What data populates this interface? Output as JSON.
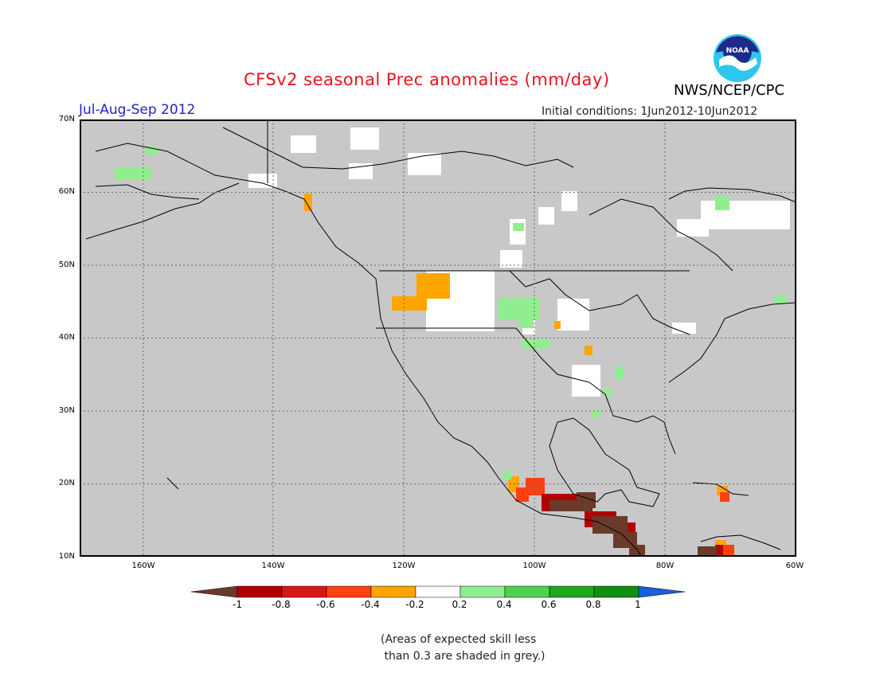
{
  "title": "CFSv2 seasonal Prec anomalies (mm/day)",
  "period": "Jul-Aug-Sep 2012",
  "initial_conditions": "Initial conditions: 1Jun2012-10Jun2012",
  "agency": "NWS/NCEP/CPC",
  "logo_text": "NOAA",
  "map": {
    "lon_range": [
      -172,
      -60
    ],
    "lat_range": [
      10,
      70
    ],
    "lat_ticks": [
      "70N",
      "60N",
      "50N",
      "40N",
      "30N",
      "20N",
      "10N"
    ],
    "lon_ticks": [
      "160W",
      "140W",
      "120W",
      "100W",
      "80W",
      "60W"
    ],
    "background_color": "#c8c8c8",
    "gridlines": "dotted"
  },
  "colorbar": {
    "labels": [
      "-1",
      "-0.8",
      "-0.6",
      "-0.4",
      "-0.2",
      "0.2",
      "0.4",
      "0.6",
      "0.8",
      "1"
    ],
    "colors": [
      "#6b3a2b",
      "#b30000",
      "#d81818",
      "#ff4010",
      "#ffa500",
      "#ffffff",
      "#90ee90",
      "#50d050",
      "#20a820",
      "#109010",
      "#1a5fd8"
    ]
  },
  "note": "(Areas of expected skill less\n than 0.3 are shaded in grey.)"
}
